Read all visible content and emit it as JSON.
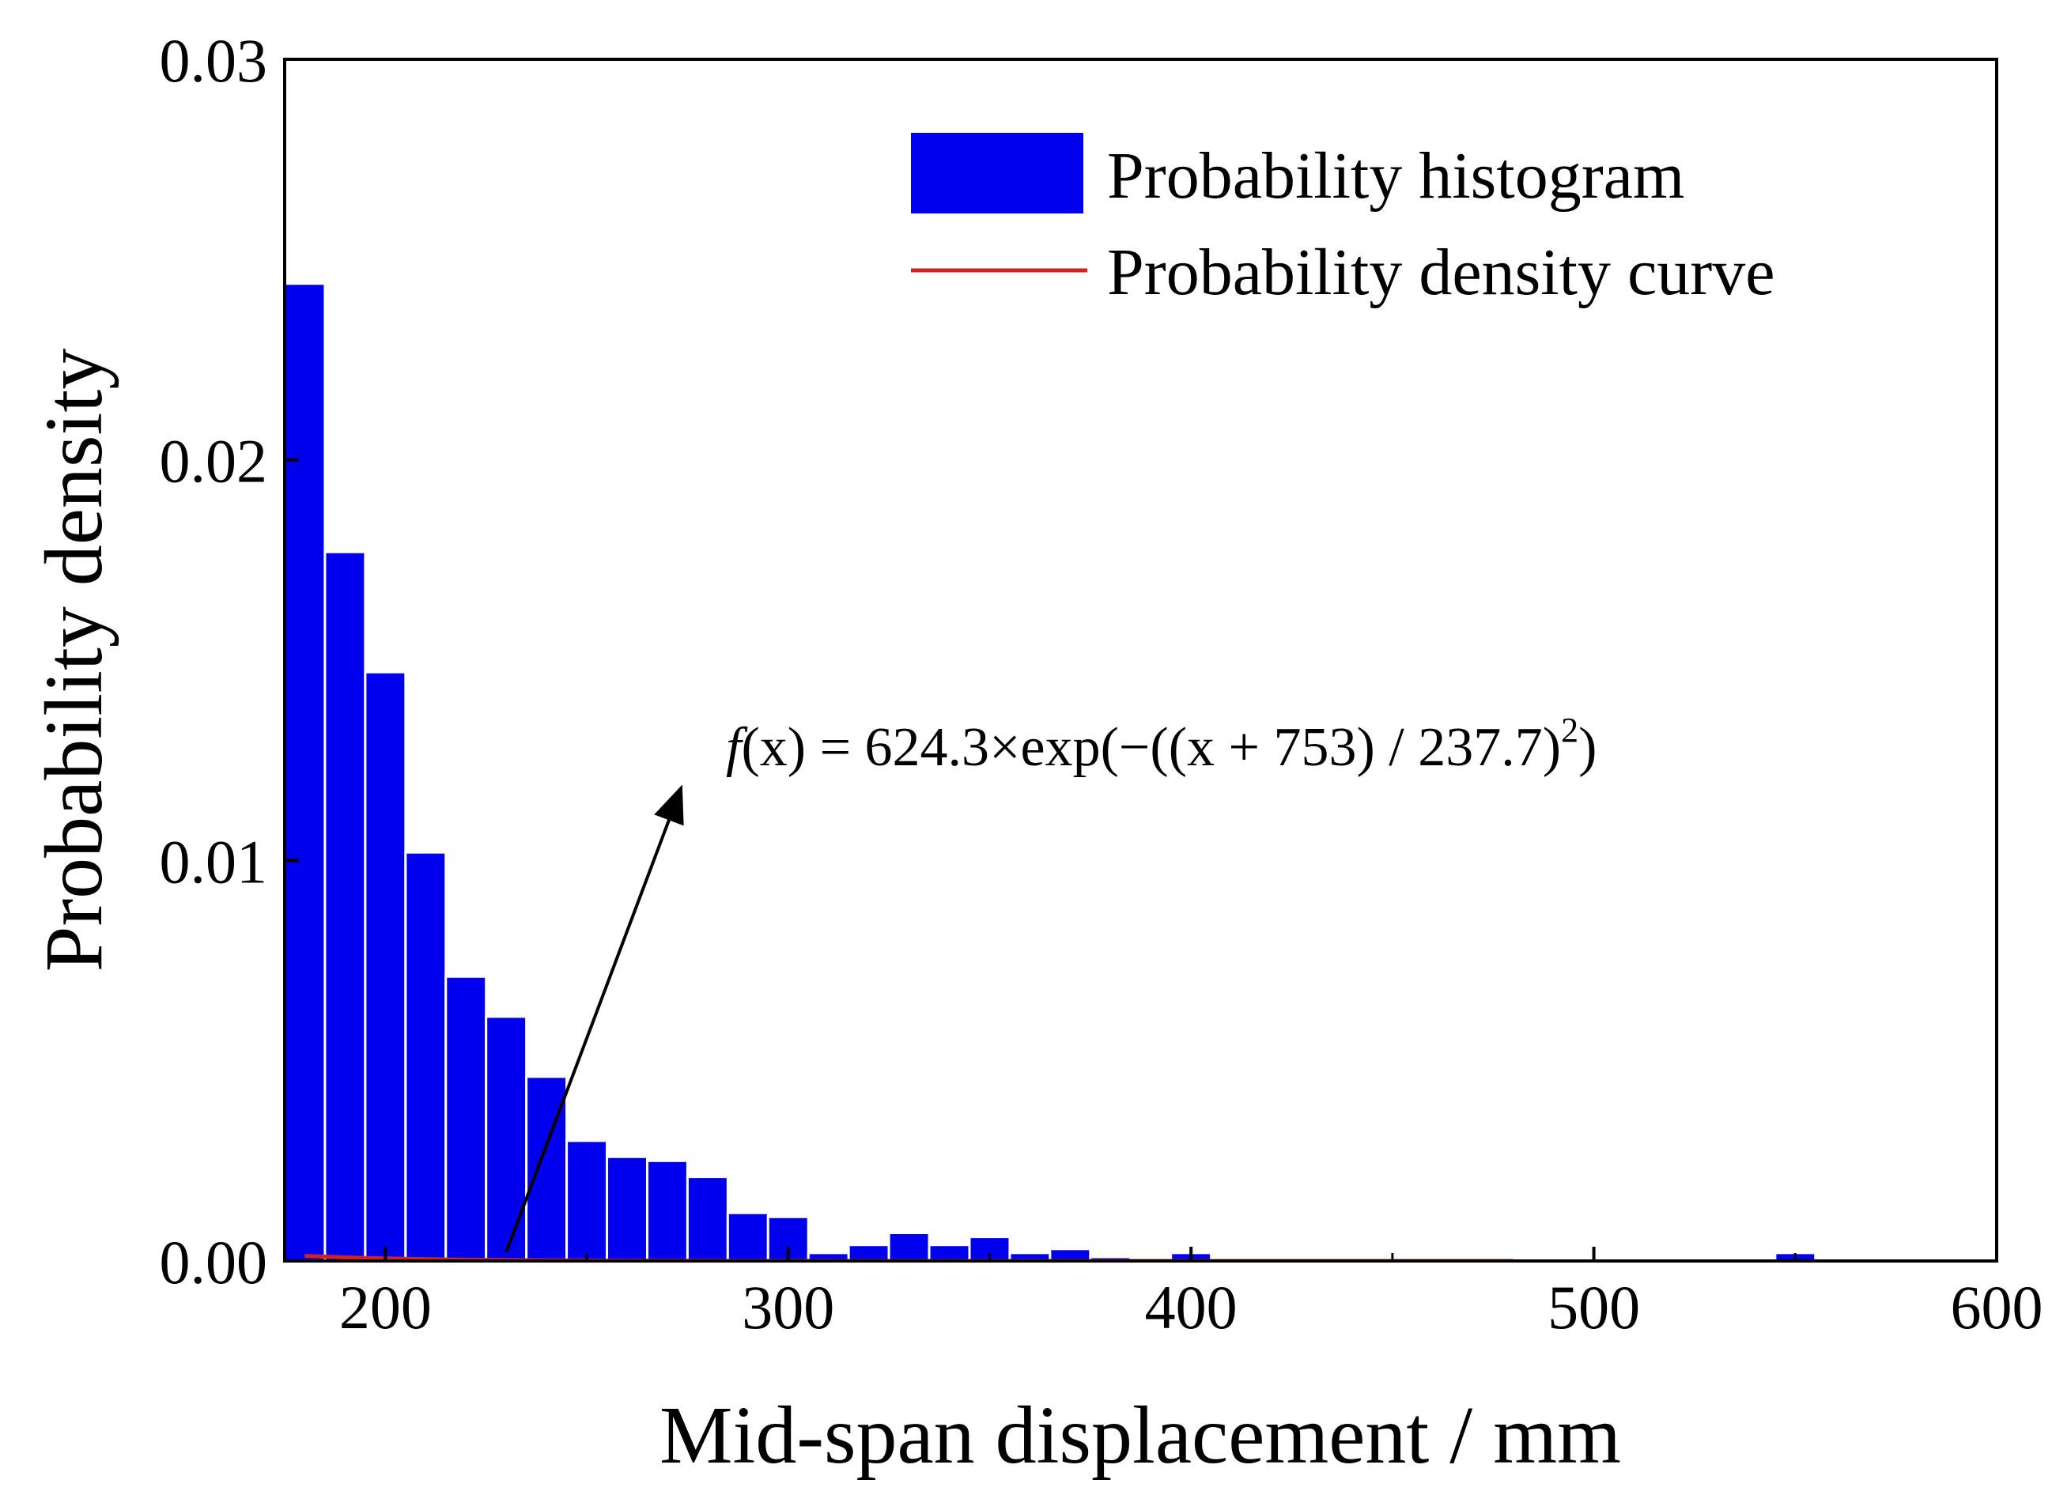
{
  "chart_data": {
    "type": "bar",
    "title": "",
    "xlabel": "Mid-span displacement / mm",
    "ylabel": "Probability density",
    "xlim": [
      175,
      600
    ],
    "ylim": [
      0,
      0.03
    ],
    "xticks": [
      "200",
      "300",
      "400",
      "500",
      "600"
    ],
    "yticks": [
      "0.00",
      "0.01",
      "0.02",
      "0.03"
    ],
    "bin_width": 10,
    "bins": [
      {
        "x0": 175,
        "x1": 185,
        "value": 0.0244
      },
      {
        "x0": 185,
        "x1": 195,
        "value": 0.0177
      },
      {
        "x0": 195,
        "x1": 205,
        "value": 0.0147
      },
      {
        "x0": 205,
        "x1": 215,
        "value": 0.0102
      },
      {
        "x0": 215,
        "x1": 225,
        "value": 0.0071
      },
      {
        "x0": 225,
        "x1": 235,
        "value": 0.0061
      },
      {
        "x0": 235,
        "x1": 245,
        "value": 0.0046
      },
      {
        "x0": 245,
        "x1": 255,
        "value": 0.003
      },
      {
        "x0": 255,
        "x1": 265,
        "value": 0.0026
      },
      {
        "x0": 265,
        "x1": 275,
        "value": 0.0025
      },
      {
        "x0": 275,
        "x1": 285,
        "value": 0.0021
      },
      {
        "x0": 285,
        "x1": 295,
        "value": 0.0012
      },
      {
        "x0": 295,
        "x1": 305,
        "value": 0.0011
      },
      {
        "x0": 305,
        "x1": 315,
        "value": 0.0002
      },
      {
        "x0": 315,
        "x1": 325,
        "value": 0.0004
      },
      {
        "x0": 325,
        "x1": 335,
        "value": 0.0007
      },
      {
        "x0": 335,
        "x1": 345,
        "value": 0.0004
      },
      {
        "x0": 345,
        "x1": 355,
        "value": 0.0006
      },
      {
        "x0": 355,
        "x1": 365,
        "value": 0.0002
      },
      {
        "x0": 365,
        "x1": 375,
        "value": 0.0003
      },
      {
        "x0": 375,
        "x1": 385,
        "value": 0.0001
      },
      {
        "x0": 395,
        "x1": 405,
        "value": 0.0002
      },
      {
        "x0": 545,
        "x1": 555,
        "value": 0.0002
      }
    ],
    "curve": {
      "name": "Probability density curve",
      "formula": "624.3*exp(-((x+753)/237.7)^2)",
      "a": 624.3,
      "b": 753,
      "c": 237.7,
      "x_start": 180,
      "x_end": 480
    },
    "legend": {
      "position": "top-right",
      "entries": [
        "Probability histogram",
        "Probability density curve"
      ]
    },
    "annotation": {
      "text_f": "f",
      "text_x1": "(x",
      "text_body": ") = 624.3×exp(−((x + 753) / 237.7)",
      "text_exp": "2",
      "text_end": ")",
      "points_to_x": 230
    },
    "colors": {
      "bar": "#0000ee",
      "bar_edge": "#ffffff",
      "curve": "#d42020",
      "axis": "#000000",
      "arrow": "#000000"
    }
  }
}
